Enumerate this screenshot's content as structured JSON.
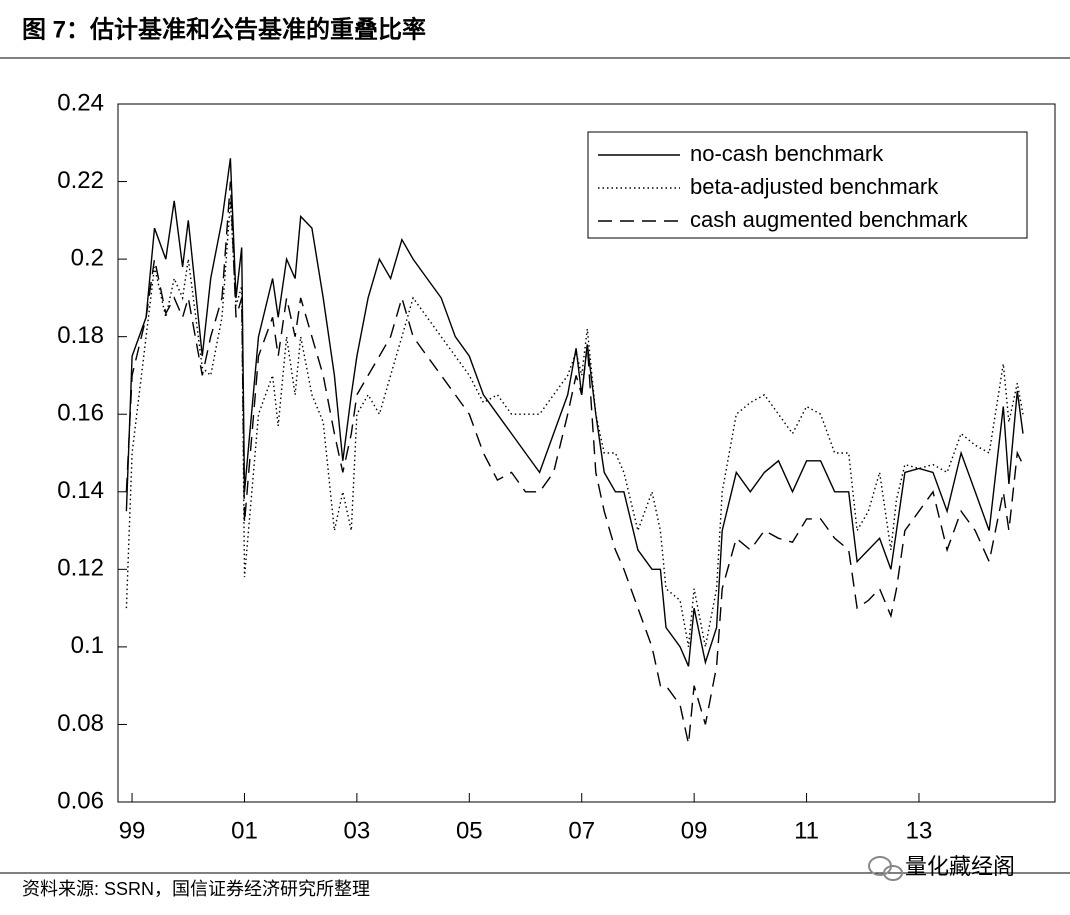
{
  "title": "图 7：估计基准和公告基准的重叠比率",
  "source": "资料来源: SSRN，国信证券经济研究所整理",
  "watermark": "量化藏经阁",
  "chart_data": {
    "type": "line",
    "x": [
      1998.9,
      1999.0,
      1999.25,
      1999.4,
      1999.6,
      1999.75,
      1999.9,
      2000.0,
      2000.25,
      2000.4,
      2000.6,
      2000.75,
      2000.85,
      2000.95,
      2001.0,
      2001.25,
      2001.5,
      2001.6,
      2001.75,
      2001.9,
      2002.0,
      2002.2,
      2002.4,
      2002.6,
      2002.75,
      2002.9,
      2003.0,
      2003.2,
      2003.4,
      2003.6,
      2003.8,
      2004.0,
      2004.25,
      2004.5,
      2004.75,
      2005.0,
      2005.25,
      2005.5,
      2005.75,
      2006.0,
      2006.25,
      2006.5,
      2006.75,
      2006.9,
      2007.0,
      2007.1,
      2007.25,
      2007.4,
      2007.6,
      2007.75,
      2008.0,
      2008.25,
      2008.4,
      2008.5,
      2008.75,
      2008.9,
      2009.0,
      2009.2,
      2009.4,
      2009.5,
      2009.75,
      2010.0,
      2010.25,
      2010.5,
      2010.75,
      2011.0,
      2011.25,
      2011.5,
      2011.75,
      2011.9,
      2012.1,
      2012.3,
      2012.5,
      2012.6,
      2012.75,
      2013.0,
      2013.25,
      2013.5,
      2013.75,
      2014.0,
      2014.25,
      2014.5,
      2014.6,
      2014.75,
      2014.85
    ],
    "series": [
      {
        "name": "no-cash benchmark",
        "color": "#000000",
        "line_style": "solid",
        "values": [
          0.135,
          0.175,
          0.185,
          0.208,
          0.2,
          0.215,
          0.198,
          0.21,
          0.175,
          0.195,
          0.21,
          0.226,
          0.19,
          0.203,
          0.14,
          0.18,
          0.195,
          0.185,
          0.2,
          0.195,
          0.211,
          0.208,
          0.19,
          0.17,
          0.148,
          0.165,
          0.175,
          0.19,
          0.2,
          0.195,
          0.205,
          0.2,
          0.195,
          0.19,
          0.18,
          0.175,
          0.165,
          0.16,
          0.155,
          0.15,
          0.145,
          0.155,
          0.165,
          0.177,
          0.165,
          0.178,
          0.16,
          0.145,
          0.14,
          0.14,
          0.125,
          0.12,
          0.12,
          0.105,
          0.1,
          0.095,
          0.11,
          0.096,
          0.105,
          0.13,
          0.145,
          0.14,
          0.145,
          0.148,
          0.14,
          0.148,
          0.148,
          0.14,
          0.14,
          0.122,
          0.125,
          0.128,
          0.12,
          0.13,
          0.145,
          0.146,
          0.145,
          0.135,
          0.15,
          0.14,
          0.13,
          0.162,
          0.142,
          0.166,
          0.155
        ]
      },
      {
        "name": "beta-adjusted benchmark",
        "color": "#000000",
        "line_style": "dotted",
        "values": [
          0.11,
          0.15,
          0.18,
          0.198,
          0.185,
          0.195,
          0.19,
          0.2,
          0.172,
          0.17,
          0.185,
          0.215,
          0.188,
          0.193,
          0.118,
          0.16,
          0.17,
          0.157,
          0.18,
          0.165,
          0.18,
          0.165,
          0.158,
          0.13,
          0.14,
          0.13,
          0.16,
          0.165,
          0.16,
          0.17,
          0.18,
          0.19,
          0.185,
          0.18,
          0.175,
          0.17,
          0.163,
          0.165,
          0.16,
          0.16,
          0.16,
          0.165,
          0.17,
          0.176,
          0.17,
          0.182,
          0.16,
          0.15,
          0.15,
          0.145,
          0.13,
          0.14,
          0.13,
          0.115,
          0.112,
          0.1,
          0.115,
          0.1,
          0.115,
          0.14,
          0.16,
          0.163,
          0.165,
          0.16,
          0.155,
          0.162,
          0.16,
          0.15,
          0.15,
          0.13,
          0.135,
          0.145,
          0.125,
          0.138,
          0.147,
          0.146,
          0.147,
          0.145,
          0.155,
          0.152,
          0.15,
          0.173,
          0.158,
          0.168,
          0.16
        ]
      },
      {
        "name": "cash augmented benchmark",
        "color": "#000000",
        "line_style": "dashed",
        "values": [
          0.14,
          0.17,
          0.185,
          0.2,
          0.186,
          0.19,
          0.185,
          0.19,
          0.17,
          0.18,
          0.19,
          0.22,
          0.185,
          0.19,
          0.132,
          0.175,
          0.185,
          0.175,
          0.19,
          0.18,
          0.19,
          0.18,
          0.17,
          0.155,
          0.145,
          0.155,
          0.165,
          0.17,
          0.175,
          0.18,
          0.19,
          0.18,
          0.175,
          0.17,
          0.165,
          0.16,
          0.15,
          0.143,
          0.145,
          0.14,
          0.14,
          0.145,
          0.16,
          0.17,
          0.165,
          0.178,
          0.145,
          0.135,
          0.125,
          0.12,
          0.11,
          0.1,
          0.09,
          0.09,
          0.085,
          0.075,
          0.09,
          0.08,
          0.095,
          0.115,
          0.128,
          0.125,
          0.13,
          0.128,
          0.127,
          0.133,
          0.133,
          0.128,
          0.125,
          0.11,
          0.112,
          0.115,
          0.108,
          0.115,
          0.13,
          0.135,
          0.14,
          0.125,
          0.135,
          0.13,
          0.122,
          0.14,
          0.13,
          0.15,
          0.147
        ]
      }
    ],
    "xlim": [
      1998.75,
      2015.42
    ],
    "xticks": [
      {
        "value": 1999,
        "label": "99"
      },
      {
        "value": 2001,
        "label": "01"
      },
      {
        "value": 2003,
        "label": "03"
      },
      {
        "value": 2005,
        "label": "05"
      },
      {
        "value": 2007,
        "label": "07"
      },
      {
        "value": 2009,
        "label": "09"
      },
      {
        "value": 2011,
        "label": "11"
      },
      {
        "value": 2013,
        "label": "13"
      }
    ],
    "ylim": [
      0.06,
      0.24
    ],
    "yticks": [
      0.06,
      0.08,
      0.1,
      0.12,
      0.14,
      0.16,
      0.18,
      0.2,
      0.22,
      0.24
    ],
    "legend": "upper right"
  }
}
